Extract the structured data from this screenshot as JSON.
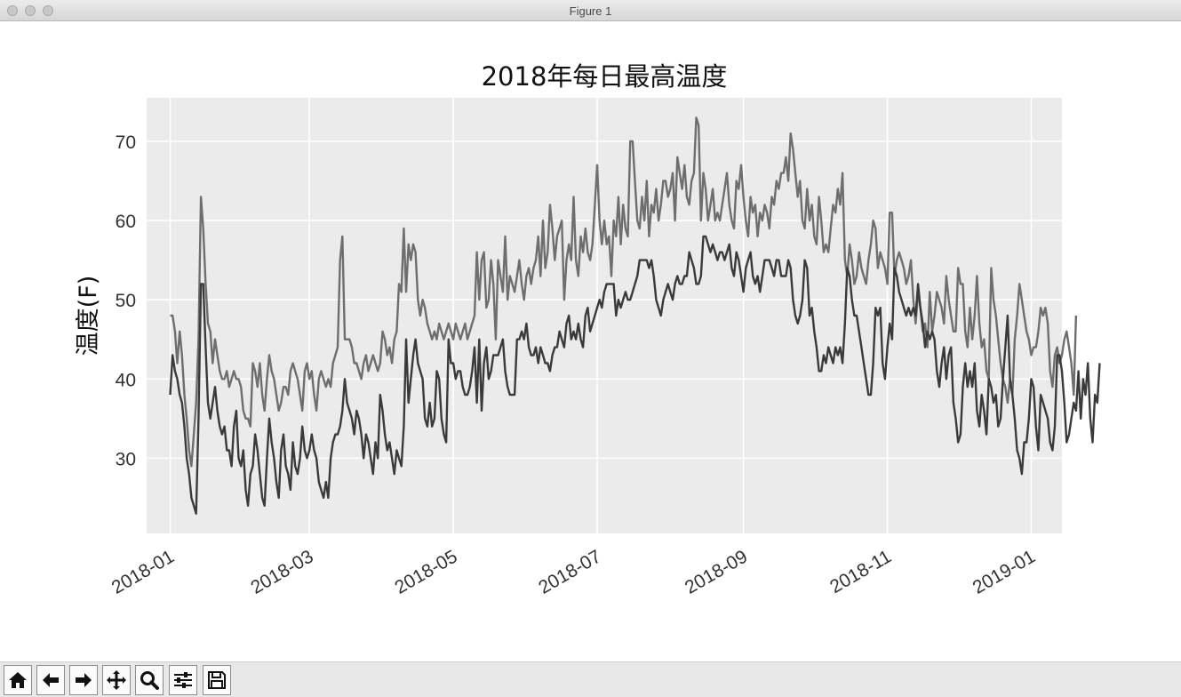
{
  "window": {
    "title": "Figure 1"
  },
  "toolbar": {
    "buttons": [
      {
        "name": "home-icon"
      },
      {
        "name": "back-arrow-icon"
      },
      {
        "name": "forward-arrow-icon"
      },
      {
        "name": "pan-icon"
      },
      {
        "name": "zoom-icon"
      },
      {
        "name": "configure-subplots-icon"
      },
      {
        "name": "save-icon"
      }
    ]
  },
  "colors": {
    "high": "#6e6e6e",
    "low": "#3a3a3a",
    "plot_bg": "#ebebeb",
    "grid": "#ffffff"
  },
  "chart_data": {
    "type": "line",
    "title": "2018年每日最高温度",
    "xlabel": "",
    "ylabel": "温度(F)",
    "x_start": "2018-01-01",
    "x_ticks": [
      "2018-01",
      "2018-03",
      "2018-05",
      "2018-07",
      "2018-09",
      "2018-11",
      "2019-01"
    ],
    "y_ticks": [
      30,
      40,
      50,
      60,
      70
    ],
    "xlim": [
      "2017-12-22",
      "2019-01-14"
    ],
    "ylim": [
      20.5,
      75.5
    ],
    "grid": true,
    "series": [
      {
        "values": [
          48,
          48,
          46,
          42,
          46,
          43,
          38,
          35,
          31,
          29,
          33,
          37,
          45,
          63,
          59,
          52,
          47,
          46,
          42,
          45,
          43,
          41,
          40,
          40,
          41,
          39,
          40,
          41,
          40,
          40,
          39,
          36,
          35,
          35,
          34,
          42,
          41,
          39,
          42,
          38,
          36,
          40,
          43,
          41,
          40,
          38,
          36,
          37,
          39,
          39,
          38,
          41,
          42,
          41,
          40,
          38,
          36,
          41,
          42,
          40,
          41,
          38,
          36,
          40,
          41,
          40,
          39,
          40,
          39,
          42,
          43,
          44,
          55,
          58,
          45,
          45,
          45,
          44,
          42,
          42,
          41,
          40,
          42,
          43,
          41,
          42,
          43,
          42,
          41,
          42,
          46,
          45,
          43,
          44,
          42,
          45,
          46,
          52,
          51,
          59,
          51,
          57,
          55,
          57,
          56,
          50,
          48,
          50,
          49,
          47,
          46,
          45,
          46,
          45,
          47,
          46,
          45,
          46,
          47,
          46,
          45,
          47,
          46,
          45,
          46,
          47,
          45,
          46,
          47,
          48,
          56,
          50,
          55,
          56,
          49,
          50,
          55,
          52,
          45,
          55,
          53,
          51,
          58,
          50,
          53,
          52,
          51,
          53,
          55,
          52,
          50,
          53,
          54,
          52,
          54,
          55,
          58,
          53,
          60,
          54,
          56,
          62,
          59,
          55,
          58,
          59,
          60,
          50,
          55,
          57,
          55,
          63,
          55,
          53,
          58,
          56,
          59,
          56,
          55,
          57,
          62,
          67,
          60,
          57,
          60,
          57,
          58,
          53,
          60,
          58,
          63,
          57,
          62,
          59,
          58,
          70,
          70,
          65,
          60,
          59,
          63,
          60,
          65,
          58,
          62,
          61,
          64,
          60,
          62,
          65,
          65,
          63,
          64,
          66,
          60,
          68,
          66,
          64,
          67,
          63,
          62,
          65,
          66,
          73,
          72,
          60,
          66,
          64,
          60,
          62,
          64,
          60,
          61,
          60,
          62,
          64,
          66,
          62,
          60,
          59,
          65,
          64,
          67,
          63,
          60,
          58,
          63,
          61,
          62,
          58,
          61,
          60,
          62,
          61,
          59,
          63,
          62,
          65,
          64,
          66,
          66,
          68,
          65,
          71,
          69,
          66,
          63,
          65,
          60,
          59,
          64,
          60,
          62,
          58,
          57,
          63,
          60,
          56,
          57,
          56,
          59,
          62,
          61,
          64,
          62,
          66,
          55,
          53,
          57,
          55,
          52,
          53,
          56,
          54,
          53,
          52,
          55,
          57,
          60,
          59,
          54,
          56,
          55,
          54,
          52,
          61,
          61,
          53,
          55,
          56,
          55,
          54,
          52,
          53,
          55,
          50,
          47,
          51,
          49,
          46,
          47,
          44,
          51,
          46,
          48,
          51,
          50,
          49,
          47,
          53,
          50,
          48,
          46,
          46,
          54,
          52,
          52,
          46,
          44,
          49,
          45,
          48,
          53,
          47,
          44,
          45,
          41,
          40,
          54,
          50,
          48,
          45,
          42,
          40,
          39,
          37,
          40,
          38,
          45,
          48,
          52,
          50,
          48,
          46,
          45,
          43,
          44,
          44,
          46,
          49,
          48,
          49,
          47,
          41,
          39,
          43,
          44,
          42,
          43,
          45,
          46,
          44,
          42,
          38,
          48
        ]
      },
      {
        "values": [
          38,
          43,
          41,
          40,
          38,
          37,
          34,
          30,
          28,
          25,
          24,
          23,
          35,
          52,
          52,
          44,
          37,
          35,
          37,
          39,
          36,
          34,
          33,
          34,
          31,
          31,
          29,
          34,
          36,
          30,
          29,
          31,
          26,
          24,
          28,
          29,
          33,
          31,
          28,
          25,
          24,
          30,
          35,
          32,
          30,
          27,
          25,
          31,
          33,
          29,
          28,
          26,
          32,
          29,
          28,
          30,
          34,
          31,
          30,
          31,
          33,
          31,
          30,
          27,
          26,
          25,
          27,
          25,
          30,
          32,
          33,
          33,
          34,
          36,
          40,
          37,
          36,
          35,
          33,
          36,
          35,
          33,
          30,
          33,
          32,
          30,
          28,
          32,
          30,
          38,
          36,
          33,
          31,
          32,
          30,
          28,
          31,
          30,
          29,
          34,
          45,
          37,
          40,
          43,
          45,
          42,
          41,
          40,
          35,
          34,
          37,
          34,
          35,
          41,
          40,
          35,
          33,
          32,
          45,
          42,
          42,
          40,
          41,
          41,
          39,
          38,
          38,
          39,
          41,
          44,
          37,
          45,
          36,
          42,
          44,
          40,
          41,
          43,
          43,
          43,
          44,
          45,
          41,
          39,
          38,
          38,
          38,
          45,
          45,
          46,
          45,
          47,
          44,
          43,
          43,
          44,
          42,
          44,
          43,
          42,
          42,
          41,
          43,
          44,
          44,
          46,
          45,
          44,
          47,
          48,
          45,
          46,
          45,
          47,
          45,
          44,
          48,
          49,
          46,
          47,
          48,
          49,
          50,
          49,
          51,
          52,
          52,
          52,
          52,
          48,
          50,
          49,
          50,
          51,
          50,
          50,
          51,
          52,
          53,
          55,
          55,
          55,
          55,
          54,
          55,
          53,
          50,
          49,
          48,
          50,
          51,
          52,
          51,
          50,
          52,
          53,
          52,
          52,
          53,
          53,
          56,
          55,
          54,
          52,
          52,
          53,
          58,
          58,
          57,
          56,
          57,
          56,
          55,
          56,
          56,
          55,
          56,
          57,
          54,
          53,
          56,
          55,
          53,
          51,
          54,
          55,
          56,
          53,
          52,
          53,
          51,
          53,
          55,
          55,
          55,
          54,
          53,
          55,
          55,
          53,
          53,
          53,
          55,
          54,
          50,
          48,
          47,
          48,
          50,
          55,
          54,
          48,
          49,
          46,
          44,
          41,
          41,
          43,
          42,
          44,
          43,
          42,
          44,
          43,
          44,
          42,
          47,
          54,
          53,
          50,
          48,
          48,
          46,
          44,
          42,
          40,
          38,
          38,
          42,
          49,
          48,
          49,
          42,
          40,
          44,
          47,
          45,
          54,
          53,
          51,
          50,
          49,
          48,
          49,
          48,
          49,
          48,
          52,
          49,
          47,
          44,
          46,
          45,
          46,
          45,
          41,
          39,
          42,
          44,
          40,
          43,
          44,
          37,
          35,
          32,
          33,
          39,
          42,
          39,
          41,
          39,
          42,
          36,
          34,
          38,
          36,
          33,
          40,
          39,
          37,
          38,
          34,
          35,
          40,
          44,
          48,
          40,
          38,
          35,
          31,
          30,
          28,
          32,
          32,
          35,
          40,
          39,
          34,
          31,
          38,
          37,
          36,
          35,
          32,
          31,
          34,
          43,
          43,
          41,
          37,
          32,
          33,
          35,
          37,
          36,
          41,
          35,
          40,
          38,
          42,
          35,
          32,
          38,
          37,
          42
        ]
      }
    ]
  }
}
